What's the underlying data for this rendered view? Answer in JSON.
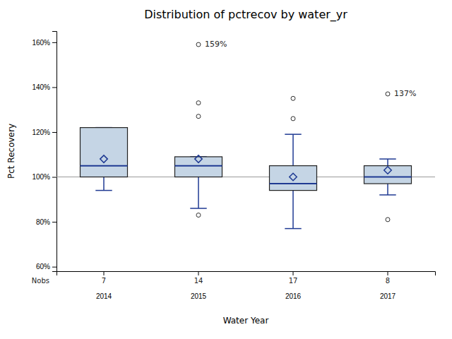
{
  "chart_data": {
    "type": "box",
    "title": "Distribution of pctrecov by water_yr",
    "x_label": "Water Year",
    "y_label": "Pct Recovery",
    "categories": [
      "2014",
      "2015",
      "2016",
      "2017"
    ],
    "boxes": [
      {
        "q1": 100,
        "median": 105,
        "q3": 122,
        "whisker_low": 94,
        "whisker_high": 122,
        "mean": 108,
        "outliers": [],
        "outlier_labels": []
      },
      {
        "q1": 100,
        "median": 105,
        "q3": 109,
        "whisker_low": 86,
        "whisker_high": 109,
        "mean": 108,
        "outliers": [
          83,
          127,
          133,
          159
        ],
        "outlier_labels": [
          null,
          null,
          null,
          "159%"
        ]
      },
      {
        "q1": 94,
        "median": 97,
        "q3": 105,
        "whisker_low": 77,
        "whisker_high": 119,
        "mean": 100,
        "outliers": [
          126,
          135
        ],
        "outlier_labels": [
          null,
          null
        ]
      },
      {
        "q1": 97,
        "median": 100,
        "q3": 105,
        "whisker_low": 92,
        "whisker_high": 108,
        "mean": 103,
        "outliers": [
          81,
          137
        ],
        "outlier_labels": [
          null,
          "137%"
        ]
      }
    ],
    "nobs_label": "Nobs",
    "nobs": [
      7,
      14,
      17,
      8
    ],
    "reference_line": 100,
    "color": "#c5d5e5",
    "ylim": [
      58,
      165
    ],
    "yticks": [
      {
        "value": 60,
        "label": "60%"
      },
      {
        "value": 80,
        "label": "80%"
      },
      {
        "value": 100,
        "label": "100%"
      },
      {
        "value": 120,
        "label": "120%"
      },
      {
        "value": 140,
        "label": "140%"
      },
      {
        "value": 160,
        "label": "160%"
      }
    ],
    "grid": false
  }
}
